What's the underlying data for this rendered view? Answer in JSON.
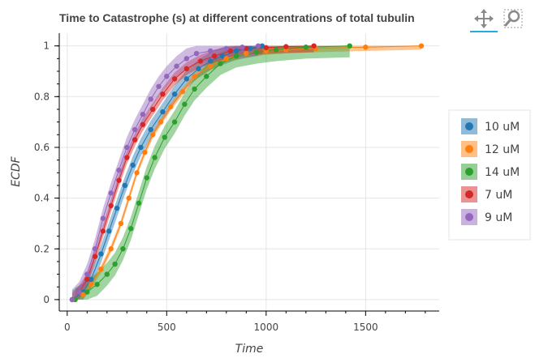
{
  "chart_data": {
    "type": "line",
    "title": "Time to Catastrophe (s) at different concentrations of total tubulin",
    "xlabel": "Time",
    "ylabel": "ECDF",
    "xlim": [
      -40,
      1870
    ],
    "ylim": [
      -0.045,
      1.05
    ],
    "xticks": [
      0,
      500,
      1000,
      1500
    ],
    "yticks": [
      0,
      0.2,
      0.4,
      0.6,
      0.8,
      1
    ],
    "grid": true,
    "legend_position": "right",
    "series": [
      {
        "name": "10 uM",
        "color": "#1f77b4",
        "x": [
          25,
          80,
          120,
          170,
          210,
          250,
          290,
          330,
          370,
          420,
          480,
          540,
          600,
          660,
          720,
          780,
          850,
          920,
          980
        ],
        "y": [
          0,
          0.03,
          0.08,
          0.18,
          0.27,
          0.36,
          0.45,
          0.53,
          0.6,
          0.67,
          0.74,
          0.81,
          0.87,
          0.91,
          0.94,
          0.96,
          0.98,
          0.99,
          1.0
        ],
        "band": 0.035
      },
      {
        "name": "12 uM",
        "color": "#ff7f0e",
        "x": [
          40,
          80,
          120,
          170,
          220,
          270,
          310,
          350,
          390,
          430,
          470,
          520,
          580,
          640,
          720,
          800,
          900,
          1000,
          1100,
          1250,
          1500,
          1780
        ],
        "y": [
          0,
          0.02,
          0.06,
          0.12,
          0.2,
          0.3,
          0.4,
          0.5,
          0.58,
          0.65,
          0.7,
          0.76,
          0.82,
          0.88,
          0.92,
          0.95,
          0.97,
          0.98,
          0.985,
          0.99,
          0.995,
          1.0
        ],
        "band": 0.015
      },
      {
        "name": "14 uM",
        "color": "#2ca02c",
        "x": [
          40,
          100,
          150,
          200,
          240,
          280,
          320,
          360,
          400,
          440,
          490,
          540,
          590,
          640,
          700,
          770,
          850,
          950,
          1050,
          1200,
          1420
        ],
        "y": [
          0,
          0.03,
          0.06,
          0.1,
          0.14,
          0.2,
          0.28,
          0.38,
          0.48,
          0.56,
          0.64,
          0.7,
          0.77,
          0.83,
          0.88,
          0.93,
          0.96,
          0.975,
          0.985,
          0.995,
          1.0
        ],
        "band": 0.045
      },
      {
        "name": "7 uM",
        "color": "#d62728",
        "x": [
          25,
          60,
          100,
          140,
          180,
          220,
          260,
          300,
          340,
          380,
          430,
          480,
          540,
          600,
          670,
          740,
          820,
          900,
          1000,
          1100,
          1240
        ],
        "y": [
          0,
          0.03,
          0.08,
          0.17,
          0.27,
          0.37,
          0.47,
          0.56,
          0.63,
          0.69,
          0.75,
          0.81,
          0.87,
          0.91,
          0.94,
          0.96,
          0.98,
          0.99,
          0.993,
          0.997,
          1.0
        ],
        "band": 0.025
      },
      {
        "name": "9 uM",
        "color": "#9467bd",
        "x": [
          25,
          60,
          100,
          140,
          180,
          220,
          260,
          300,
          340,
          380,
          420,
          460,
          500,
          550,
          600,
          650,
          720,
          800,
          880,
          960
        ],
        "y": [
          0,
          0.03,
          0.1,
          0.2,
          0.32,
          0.42,
          0.51,
          0.6,
          0.67,
          0.73,
          0.79,
          0.84,
          0.88,
          0.92,
          0.95,
          0.97,
          0.98,
          0.99,
          0.995,
          1.0
        ],
        "band": 0.04
      }
    ]
  },
  "toolbar": {
    "pan_icon": "pan-move-icon",
    "zoom_icon": "magnifier-zoom-icon"
  }
}
